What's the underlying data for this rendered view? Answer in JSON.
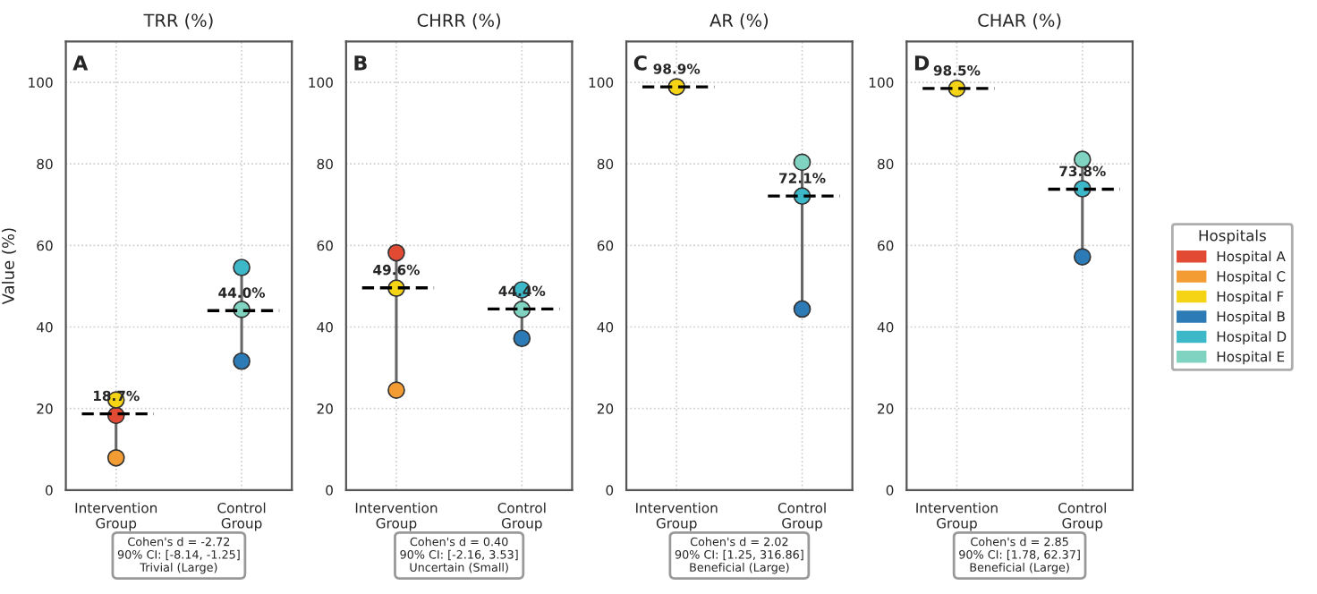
{
  "chart_data": [
    {
      "type": "scatter",
      "title": "TRR (%)",
      "ylabel": "Value (%)",
      "categories": [
        "Intervention\nGroup",
        "Control\nGroup"
      ],
      "ylim": [
        0,
        110
      ],
      "yticks": [
        0,
        20,
        40,
        60,
        80,
        100
      ],
      "grid": true,
      "marker": "circle",
      "legend": "right",
      "legend_title": "Hospitals",
      "annotations": [
        "A",
        "Cohen's d = -2.72\n90% CI: [-8.14, -1.25]\nTrivial (Large)"
      ],
      "ref_lines": [
        {
          "axis": "y",
          "value": 18.7,
          "label": "18.7%",
          "color": "#000000",
          "line_style": "dashed"
        },
        {
          "axis": "y",
          "value": 44.0,
          "label": "44.0%",
          "color": "#000000",
          "line_style": "dashed"
        }
      ],
      "series": [
        {
          "name": "Hospital A",
          "color": "#e34a33",
          "values": [
            18.3,
            null
          ]
        },
        {
          "name": "Hospital C",
          "color": "#f39c34",
          "values": [
            7.9,
            null
          ]
        },
        {
          "name": "Hospital F",
          "color": "#f5d415",
          "values": [
            22.1,
            null
          ]
        },
        {
          "name": "Hospital B",
          "color": "#2c7bb6",
          "values": [
            null,
            31.6
          ]
        },
        {
          "name": "Hospital D",
          "color": "#3db8c8",
          "values": [
            null,
            54.6
          ]
        },
        {
          "name": "Hospital E",
          "color": "#7fd3c0",
          "values": [
            null,
            44.3
          ]
        }
      ]
    },
    {
      "type": "scatter",
      "title": "CHRR (%)",
      "categories": [
        "Intervention\nGroup",
        "Control\nGroup"
      ],
      "ylim": [
        0,
        110
      ],
      "yticks": [
        0,
        20,
        40,
        60,
        80,
        100
      ],
      "grid": true,
      "marker": "circle",
      "annotations": [
        "B",
        "Cohen's d = 0.40\n90% CI: [-2.16, 3.53]\nUncertain (Small)"
      ],
      "ref_lines": [
        {
          "axis": "y",
          "value": 49.6,
          "label": "49.6%",
          "color": "#000000",
          "line_style": "dashed"
        },
        {
          "axis": "y",
          "value": 44.4,
          "label": "44.4%",
          "color": "#000000",
          "line_style": "dashed"
        }
      ],
      "series": [
        {
          "name": "Hospital A",
          "color": "#e34a33",
          "values": [
            58.2,
            null
          ]
        },
        {
          "name": "Hospital C",
          "color": "#f39c34",
          "values": [
            24.5,
            null
          ]
        },
        {
          "name": "Hospital F",
          "color": "#f5d415",
          "values": [
            49.5,
            null
          ]
        },
        {
          "name": "Hospital B",
          "color": "#2c7bb6",
          "values": [
            null,
            37.2
          ]
        },
        {
          "name": "Hospital D",
          "color": "#3db8c8",
          "values": [
            null,
            49.1
          ]
        },
        {
          "name": "Hospital E",
          "color": "#7fd3c0",
          "values": [
            null,
            44.3
          ]
        }
      ]
    },
    {
      "type": "scatter",
      "title": "AR (%)",
      "categories": [
        "Intervention\nGroup",
        "Control\nGroup"
      ],
      "ylim": [
        0,
        110
      ],
      "yticks": [
        0,
        20,
        40,
        60,
        80,
        100
      ],
      "grid": true,
      "marker": "circle",
      "annotations": [
        "C",
        "Cohen's d = 2.02\n90% CI: [1.25, 316.86]\nBeneficial (Large)"
      ],
      "ref_lines": [
        {
          "axis": "y",
          "value": 98.9,
          "label": "98.9%",
          "color": "#000000",
          "line_style": "dashed"
        },
        {
          "axis": "y",
          "value": 72.1,
          "label": "72.1%",
          "color": "#000000",
          "line_style": "dashed"
        }
      ],
      "series": [
        {
          "name": "Hospital A",
          "color": "#e34a33",
          "values": [
            null,
            null
          ]
        },
        {
          "name": "Hospital C",
          "color": "#f39c34",
          "values": [
            null,
            null
          ]
        },
        {
          "name": "Hospital F",
          "color": "#f5d415",
          "values": [
            98.9,
            null
          ]
        },
        {
          "name": "Hospital B",
          "color": "#2c7bb6",
          "values": [
            null,
            44.4
          ]
        },
        {
          "name": "Hospital D",
          "color": "#3db8c8",
          "values": [
            null,
            72.1
          ]
        },
        {
          "name": "Hospital E",
          "color": "#7fd3c0",
          "values": [
            null,
            80.4
          ]
        }
      ]
    },
    {
      "type": "scatter",
      "title": "CHAR (%)",
      "categories": [
        "Intervention\nGroup",
        "Control\nGroup"
      ],
      "ylim": [
        0,
        110
      ],
      "yticks": [
        0,
        20,
        40,
        60,
        80,
        100
      ],
      "grid": true,
      "marker": "circle",
      "annotations": [
        "D",
        "Cohen's d = 2.85\n90% CI: [1.78, 62.37]\nBeneficial (Large)"
      ],
      "ref_lines": [
        {
          "axis": "y",
          "value": 98.5,
          "label": "98.5%",
          "color": "#000000",
          "line_style": "dashed"
        },
        {
          "axis": "y",
          "value": 73.8,
          "label": "73.8%",
          "color": "#000000",
          "line_style": "dashed"
        }
      ],
      "series": [
        {
          "name": "Hospital A",
          "color": "#e34a33",
          "values": [
            null,
            null
          ]
        },
        {
          "name": "Hospital C",
          "color": "#f39c34",
          "values": [
            null,
            null
          ]
        },
        {
          "name": "Hospital F",
          "color": "#f5d415",
          "values": [
            98.5,
            null
          ]
        },
        {
          "name": "Hospital B",
          "color": "#2c7bb6",
          "values": [
            null,
            57.2
          ]
        },
        {
          "name": "Hospital D",
          "color": "#3db8c8",
          "values": [
            null,
            73.9
          ]
        },
        {
          "name": "Hospital E",
          "color": "#7fd3c0",
          "values": [
            null,
            81.1
          ]
        }
      ]
    }
  ]
}
